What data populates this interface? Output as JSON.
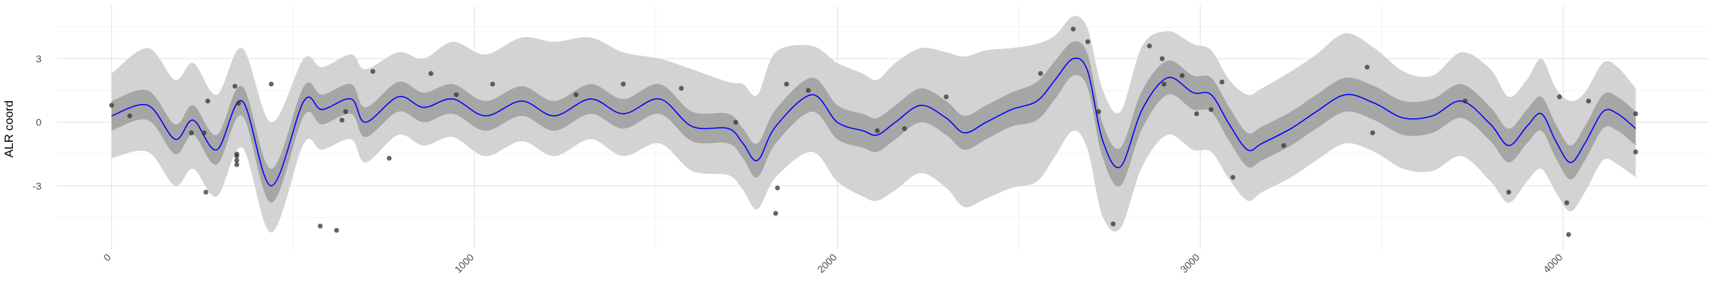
{
  "chart_data": {
    "type": "line",
    "title": "",
    "xlabel": "",
    "ylabel": "ALR coord",
    "xlim": [
      -150,
      4400
    ],
    "ylim": [
      -6,
      5.5
    ],
    "x_ticks": [
      0,
      1000,
      2000,
      3000,
      4000
    ],
    "x_tick_labels": [
      "0",
      "1000",
      "2000",
      "3000",
      "4000"
    ],
    "y_ticks": [
      -3,
      0,
      3
    ],
    "y_tick_labels": [
      "-3",
      "0",
      "3"
    ],
    "grid": true,
    "legend": "none",
    "colors": {
      "mean_line": "#0000ff",
      "inner_band": "#a6a6a6",
      "outer_band": "#d3d3d3",
      "points": "#333333",
      "grid_major": "#e0e0e0",
      "grid_minor": "#f2f2f2"
    },
    "series": [
      {
        "kind": "mean",
        "x": [
          0,
          100,
          175,
          225,
          290,
          360,
          440,
          530,
          580,
          660,
          700,
          790,
          860,
          940,
          1030,
          1130,
          1220,
          1320,
          1410,
          1510,
          1600,
          1700,
          1740,
          1780,
          1830,
          1930,
          2000,
          2070,
          2110,
          2160,
          2230,
          2300,
          2350,
          2410,
          2480,
          2550,
          2600,
          2650,
          2690,
          2730,
          2780,
          2840,
          2910,
          2980,
          3030,
          3080,
          3130,
          3170,
          3250,
          3320,
          3400,
          3480,
          3560,
          3640,
          3720,
          3800,
          3850,
          3900,
          3940,
          3980,
          4020,
          4060,
          4110,
          4150,
          4200
        ],
        "y": [
          0.3,
          0.8,
          -0.8,
          0.1,
          -1.3,
          1.0,
          -3.0,
          1.0,
          0.6,
          1.1,
          0.0,
          1.2,
          0.7,
          1.1,
          0.3,
          1.0,
          0.3,
          1.1,
          0.4,
          1.1,
          -0.2,
          -0.3,
          -1.0,
          -1.8,
          -0.2,
          1.3,
          0.0,
          -0.4,
          -0.6,
          0.0,
          0.8,
          0.2,
          -0.5,
          0.0,
          0.6,
          1.0,
          2.0,
          3.0,
          2.4,
          -0.8,
          -2.1,
          0.6,
          2.1,
          1.4,
          1.3,
          -0.1,
          -1.3,
          -1.0,
          -0.3,
          0.5,
          1.3,
          0.9,
          0.2,
          0.3,
          1.0,
          -0.1,
          -1.1,
          -0.2,
          0.4,
          -0.9,
          -1.9,
          -1.0,
          0.5,
          0.4,
          -0.3
        ]
      },
      {
        "kind": "inner_band",
        "x": [
          0,
          100,
          175,
          225,
          290,
          360,
          440,
          530,
          580,
          660,
          700,
          790,
          860,
          940,
          1030,
          1130,
          1220,
          1320,
          1410,
          1510,
          1600,
          1700,
          1740,
          1780,
          1830,
          1930,
          2000,
          2070,
          2110,
          2160,
          2230,
          2300,
          2350,
          2410,
          2480,
          2550,
          2600,
          2650,
          2690,
          2730,
          2780,
          2840,
          2910,
          2980,
          3030,
          3080,
          3130,
          3170,
          3250,
          3320,
          3400,
          3480,
          3560,
          3640,
          3720,
          3800,
          3850,
          3900,
          3940,
          3980,
          4020,
          4060,
          4110,
          4150,
          4200
        ],
        "lower": [
          -0.4,
          0.1,
          -1.5,
          -0.6,
          -2.0,
          0.3,
          -3.8,
          0.3,
          -0.1,
          0.4,
          -0.7,
          0.5,
          0.0,
          0.4,
          -0.4,
          0.3,
          -0.4,
          0.4,
          -0.3,
          0.4,
          -0.9,
          -1.0,
          -1.7,
          -2.6,
          -1.0,
          0.5,
          -0.8,
          -1.2,
          -1.4,
          -0.8,
          0.0,
          -0.6,
          -1.3,
          -0.8,
          -0.2,
          0.1,
          1.1,
          2.2,
          1.6,
          -1.6,
          -3.0,
          -0.3,
          1.3,
          0.6,
          0.5,
          -0.9,
          -2.1,
          -1.8,
          -1.1,
          -0.3,
          0.5,
          0.1,
          -0.6,
          -0.5,
          0.2,
          -0.9,
          -1.9,
          -1.0,
          -0.4,
          -1.7,
          -2.7,
          -1.8,
          -0.3,
          -0.4,
          -1.1
        ],
        "upper": [
          1.0,
          1.5,
          -0.1,
          0.8,
          -0.6,
          1.7,
          -2.2,
          1.7,
          1.3,
          1.8,
          0.7,
          1.9,
          1.4,
          1.8,
          1.0,
          1.7,
          1.0,
          1.8,
          1.1,
          1.8,
          0.5,
          0.4,
          -0.3,
          -1.0,
          0.6,
          2.1,
          0.8,
          0.4,
          0.2,
          0.8,
          1.6,
          1.0,
          0.3,
          0.8,
          1.4,
          1.9,
          2.9,
          3.8,
          3.2,
          0.0,
          -1.2,
          1.5,
          2.9,
          2.2,
          2.1,
          0.7,
          -0.5,
          -0.2,
          0.5,
          1.3,
          2.1,
          1.7,
          1.0,
          1.1,
          1.8,
          0.7,
          -0.3,
          0.6,
          1.2,
          -0.1,
          -1.1,
          -0.2,
          1.3,
          1.2,
          0.5
        ]
      },
      {
        "kind": "outer_band",
        "x": [
          0,
          100,
          175,
          225,
          290,
          360,
          440,
          530,
          580,
          660,
          700,
          790,
          860,
          940,
          1030,
          1130,
          1220,
          1320,
          1410,
          1510,
          1600,
          1700,
          1740,
          1780,
          1830,
          1930,
          2000,
          2070,
          2110,
          2160,
          2230,
          2300,
          2350,
          2410,
          2480,
          2550,
          2600,
          2650,
          2690,
          2730,
          2780,
          2840,
          2910,
          2980,
          3030,
          3080,
          3130,
          3170,
          3250,
          3320,
          3400,
          3480,
          3560,
          3640,
          3720,
          3800,
          3850,
          3900,
          3940,
          3980,
          4020,
          4060,
          4110,
          4150,
          4200
        ],
        "lower": [
          -1.7,
          -1.4,
          -3.0,
          -2.2,
          -3.5,
          -1.2,
          -5.2,
          -1.0,
          -1.3,
          -0.8,
          -1.9,
          -0.6,
          -1.1,
          -0.7,
          -1.6,
          -0.9,
          -1.6,
          -0.8,
          -1.6,
          -1.0,
          -2.3,
          -2.5,
          -3.2,
          -4.1,
          -2.6,
          -1.4,
          -2.8,
          -3.5,
          -3.7,
          -3.2,
          -2.4,
          -3.1,
          -4.0,
          -3.6,
          -3.1,
          -2.8,
          -1.6,
          -0.4,
          -1.3,
          -4.4,
          -5.0,
          -2.1,
          -0.6,
          -1.3,
          -1.4,
          -2.7,
          -3.7,
          -3.3,
          -2.6,
          -1.8,
          -1.0,
          -1.4,
          -2.2,
          -2.3,
          -1.6,
          -2.8,
          -3.8,
          -2.8,
          -2.2,
          -3.3,
          -4.2,
          -3.3,
          -1.8,
          -2.0,
          -2.6
        ],
        "upper": [
          2.3,
          3.5,
          2.0,
          2.8,
          1.3,
          3.5,
          0.0,
          3.0,
          2.6,
          3.2,
          2.5,
          3.3,
          3.0,
          3.8,
          3.2,
          4.0,
          3.8,
          4.0,
          3.3,
          3.0,
          2.5,
          1.9,
          1.8,
          1.3,
          3.3,
          3.6,
          2.8,
          2.3,
          2.0,
          2.8,
          3.5,
          3.3,
          3.1,
          3.4,
          3.5,
          3.7,
          4.1,
          5.0,
          4.4,
          1.6,
          0.5,
          3.6,
          4.3,
          3.7,
          3.4,
          2.0,
          1.3,
          1.6,
          2.4,
          3.2,
          4.2,
          3.5,
          2.4,
          2.2,
          3.3,
          2.5,
          1.2,
          2.0,
          3.0,
          1.6,
          1.0,
          1.4,
          2.8,
          2.6,
          1.6
        ]
      },
      {
        "kind": "points",
        "x": [
          0,
          50,
          220,
          255,
          260,
          265,
          340,
          345,
          345,
          345,
          345,
          350,
          440,
          575,
          620,
          635,
          645,
          720,
          765,
          880,
          950,
          1050,
          1280,
          1410,
          1570,
          1720,
          1830,
          1835,
          1860,
          1920,
          2110,
          2185,
          2300,
          2560,
          2650,
          2690,
          2720,
          2760,
          2860,
          2895,
          2900,
          2950,
          2990,
          3030,
          3060,
          3090,
          3230,
          3460,
          3475,
          3730,
          3850,
          3990,
          4010,
          4015,
          4070,
          4200,
          4200
        ],
        "y": [
          0.8,
          0.3,
          -0.5,
          -0.5,
          -3.3,
          1.0,
          1.7,
          -1.5,
          -1.6,
          -1.8,
          -2.0,
          0.9,
          1.8,
          -4.9,
          -5.1,
          0.1,
          0.5,
          2.4,
          -1.7,
          2.3,
          1.3,
          1.8,
          1.3,
          1.8,
          1.6,
          0.0,
          -4.3,
          -3.1,
          1.8,
          1.5,
          -0.4,
          -0.3,
          1.2,
          2.3,
          4.4,
          3.8,
          0.5,
          -4.8,
          3.6,
          3.0,
          1.8,
          2.2,
          0.4,
          0.6,
          1.9,
          -2.6,
          -1.1,
          2.6,
          -0.5,
          1.0,
          -3.3,
          1.2,
          -3.8,
          -5.3,
          1.0,
          0.4,
          -1.4
        ]
      }
    ]
  }
}
